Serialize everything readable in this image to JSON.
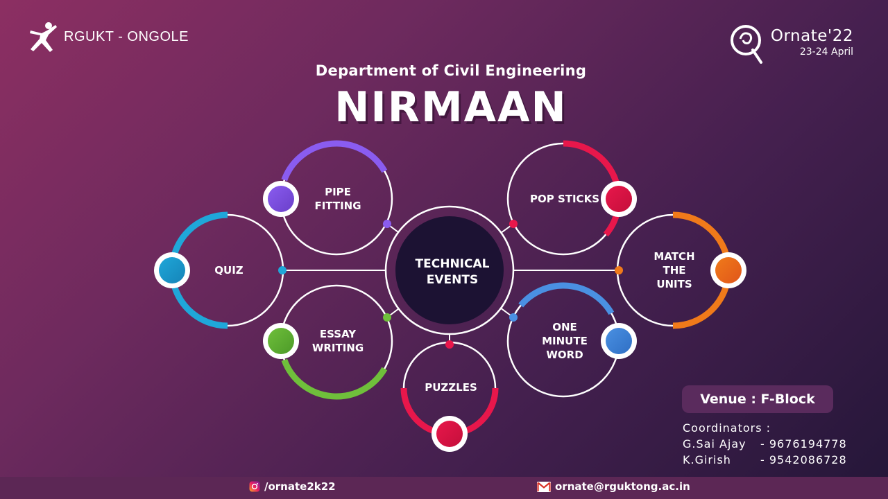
{
  "header": {
    "org_name": "RGUKT - ONGOLE",
    "fest_name": "Ornate'22",
    "fest_dates": "23-24 April",
    "department": "Department of Civil Engineering",
    "event_title": "NIRMAAN"
  },
  "diagram": {
    "center_line1": "TECHNICAL",
    "center_line2": "EVENTS",
    "events": [
      {
        "id": "pipe-fitting",
        "lines": [
          "PIPE",
          "FITTING"
        ],
        "color": "#8a5cf0",
        "color2": "#6a3fc9"
      },
      {
        "id": "pop-sticks",
        "lines": [
          "POP STICKS"
        ],
        "color": "#e8174b",
        "color2": "#c40f3b"
      },
      {
        "id": "quiz",
        "lines": [
          "QUIZ"
        ],
        "color": "#1fa7d9",
        "color2": "#1584b8"
      },
      {
        "id": "match-the-units",
        "lines": [
          "MATCH",
          "THE",
          "UNITS"
        ],
        "color": "#f07a1a",
        "color2": "#e0561a"
      },
      {
        "id": "essay-writing",
        "lines": [
          "ESSAY",
          "WRITING"
        ],
        "color": "#6fbf3b",
        "color2": "#4c9a28"
      },
      {
        "id": "one-minute-word",
        "lines": [
          "ONE",
          "MINUTE",
          "WORD"
        ],
        "color": "#4a90e2",
        "color2": "#2f6fc4"
      },
      {
        "id": "puzzles",
        "lines": [
          "PUZZLES"
        ],
        "color": "#e8174b",
        "color2": "#c40f3b"
      }
    ]
  },
  "venue": "Venue : F-Block",
  "coordinators": {
    "heading": "Coordinators :",
    "people": [
      {
        "name": "G.Sai Ajay",
        "phone": "- 9676194778"
      },
      {
        "name": "K.Girish",
        "phone": "- 9542086728"
      }
    ]
  },
  "footer": {
    "instagram": "/ornate2k22",
    "email": "ornate@rguktong.ac.in"
  },
  "colors": {
    "center_fill": "#1c1233",
    "ring": "#ffffff",
    "footer_bg": "#5c2755"
  }
}
